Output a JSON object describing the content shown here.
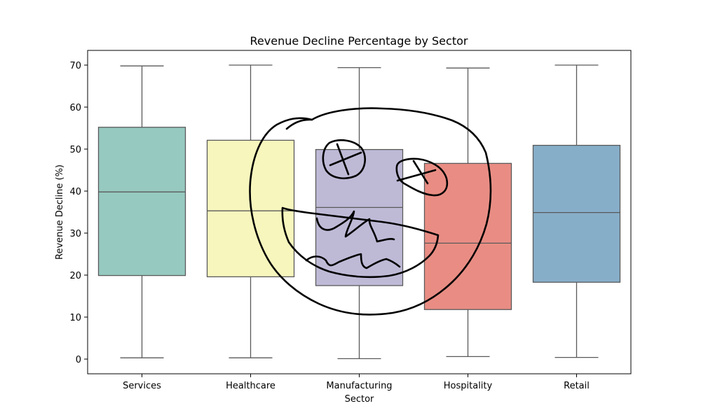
{
  "chart_data": {
    "type": "box",
    "title": "Revenue Decline Percentage by Sector",
    "xlabel": "Sector",
    "ylabel": "Revenue Decline (%)",
    "ylim": [
      -3.5,
      73.5
    ],
    "yticks": [
      0,
      10,
      20,
      30,
      40,
      50,
      60,
      70
    ],
    "grid": false,
    "legend": "none",
    "categories": [
      "Services",
      "Healthcare",
      "Manufacturing",
      "Hospitality",
      "Retail"
    ],
    "boxes": [
      {
        "category": "Services",
        "min": 0.3,
        "q1": 19.9,
        "median": 39.8,
        "q3": 55.2,
        "max": 69.8,
        "color": "#96c9c0"
      },
      {
        "category": "Healthcare",
        "min": 0.3,
        "q1": 19.6,
        "median": 35.3,
        "q3": 52.1,
        "max": 70.0,
        "color": "#f6f6bd"
      },
      {
        "category": "Manufacturing",
        "min": 0.1,
        "q1": 17.5,
        "median": 36.1,
        "q3": 49.9,
        "max": 69.4,
        "color": "#bebad6"
      },
      {
        "category": "Hospitality",
        "min": 0.6,
        "q1": 11.8,
        "median": 27.6,
        "q3": 46.6,
        "max": 69.3,
        "color": "#e98d84"
      },
      {
        "category": "Retail",
        "min": 0.4,
        "q1": 18.3,
        "median": 34.9,
        "q3": 50.9,
        "max": 70.0,
        "color": "#87aec9"
      }
    ]
  }
}
